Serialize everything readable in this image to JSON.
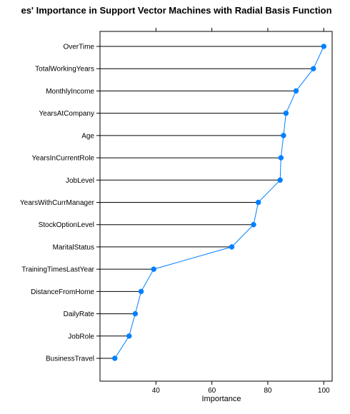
{
  "chart_data": {
    "type": "dot",
    "title": "es' Importance in Support Vector Machines with Radial Basis Function",
    "xlabel": "Importance",
    "ylabel": "",
    "xlim": [
      20,
      103
    ],
    "xticks": [
      40,
      60,
      80,
      100
    ],
    "categories": [
      "OverTime",
      "TotalWorkingYears",
      "MonthlyIncome",
      "YearsAtCompany",
      "Age",
      "YearsInCurrentRole",
      "JobLevel",
      "YearsWithCurrManager",
      "StockOptionLevel",
      "MaritalStatus",
      "TrainingTimesLastYear",
      "DistanceFromHome",
      "DailyRate",
      "JobRole",
      "BusinessTravel"
    ],
    "values": [
      100,
      96.3,
      90.1,
      86.5,
      85.6,
      84.7,
      84.4,
      76.6,
      74.9,
      67.1,
      39.2,
      34.7,
      32.6,
      30.4,
      25.3
    ],
    "point_color": "#0080ff",
    "line_color": "#0080ff",
    "grid": false
  }
}
